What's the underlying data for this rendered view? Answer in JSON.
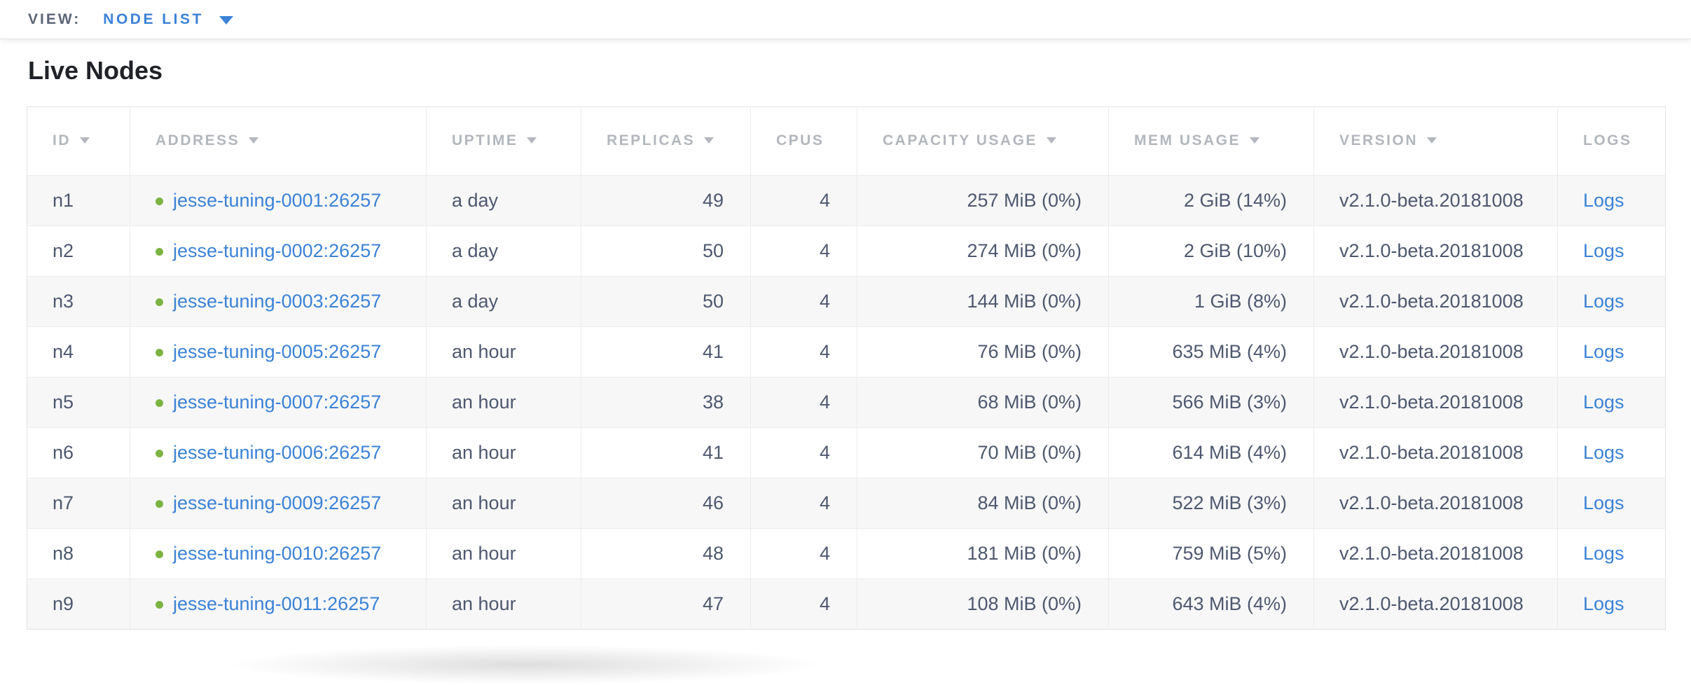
{
  "topbar": {
    "view_label": "VIEW:",
    "view_value": "NODE LIST"
  },
  "page": {
    "title": "Live Nodes"
  },
  "table": {
    "columns": [
      {
        "label": "ID",
        "sortable": true
      },
      {
        "label": "ADDRESS",
        "sortable": true
      },
      {
        "label": "UPTIME",
        "sortable": true
      },
      {
        "label": "REPLICAS",
        "sortable": true
      },
      {
        "label": "CPUS",
        "sortable": false
      },
      {
        "label": "CAPACITY USAGE",
        "sortable": true
      },
      {
        "label": "MEM USAGE",
        "sortable": true
      },
      {
        "label": "VERSION",
        "sortable": true
      },
      {
        "label": "LOGS",
        "sortable": false
      }
    ],
    "rows": [
      {
        "id": "n1",
        "status": "live",
        "address": "jesse-tuning-0001:26257",
        "uptime": "a day",
        "replicas": "49",
        "cpus": "4",
        "capacity_usage": "257 MiB (0%)",
        "mem_usage": "2 GiB (14%)",
        "version": "v2.1.0-beta.20181008",
        "logs_label": "Logs"
      },
      {
        "id": "n2",
        "status": "live",
        "address": "jesse-tuning-0002:26257",
        "uptime": "a day",
        "replicas": "50",
        "cpus": "4",
        "capacity_usage": "274 MiB (0%)",
        "mem_usage": "2 GiB (10%)",
        "version": "v2.1.0-beta.20181008",
        "logs_label": "Logs"
      },
      {
        "id": "n3",
        "status": "live",
        "address": "jesse-tuning-0003:26257",
        "uptime": "a day",
        "replicas": "50",
        "cpus": "4",
        "capacity_usage": "144 MiB (0%)",
        "mem_usage": "1 GiB (8%)",
        "version": "v2.1.0-beta.20181008",
        "logs_label": "Logs"
      },
      {
        "id": "n4",
        "status": "live",
        "address": "jesse-tuning-0005:26257",
        "uptime": "an hour",
        "replicas": "41",
        "cpus": "4",
        "capacity_usage": "76 MiB (0%)",
        "mem_usage": "635 MiB (4%)",
        "version": "v2.1.0-beta.20181008",
        "logs_label": "Logs"
      },
      {
        "id": "n5",
        "status": "live",
        "address": "jesse-tuning-0007:26257",
        "uptime": "an hour",
        "replicas": "38",
        "cpus": "4",
        "capacity_usage": "68 MiB (0%)",
        "mem_usage": "566 MiB (3%)",
        "version": "v2.1.0-beta.20181008",
        "logs_label": "Logs"
      },
      {
        "id": "n6",
        "status": "live",
        "address": "jesse-tuning-0006:26257",
        "uptime": "an hour",
        "replicas": "41",
        "cpus": "4",
        "capacity_usage": "70 MiB (0%)",
        "mem_usage": "614 MiB (4%)",
        "version": "v2.1.0-beta.20181008",
        "logs_label": "Logs"
      },
      {
        "id": "n7",
        "status": "live",
        "address": "jesse-tuning-0009:26257",
        "uptime": "an hour",
        "replicas": "46",
        "cpus": "4",
        "capacity_usage": "84 MiB (0%)",
        "mem_usage": "522 MiB (3%)",
        "version": "v2.1.0-beta.20181008",
        "logs_label": "Logs"
      },
      {
        "id": "n8",
        "status": "live",
        "address": "jesse-tuning-0010:26257",
        "uptime": "an hour",
        "replicas": "48",
        "cpus": "4",
        "capacity_usage": "181 MiB (0%)",
        "mem_usage": "759 MiB (5%)",
        "version": "v2.1.0-beta.20181008",
        "logs_label": "Logs"
      },
      {
        "id": "n9",
        "status": "live",
        "address": "jesse-tuning-0011:26257",
        "uptime": "an hour",
        "replicas": "47",
        "cpus": "4",
        "capacity_usage": "108 MiB (0%)",
        "mem_usage": "643 MiB (4%)",
        "version": "v2.1.0-beta.20181008",
        "logs_label": "Logs"
      }
    ]
  },
  "colors": {
    "accent_blue": "#3b82d6",
    "live_green": "#7cb342",
    "cell_text": "#4e586f",
    "header_text": "#b3b7bd",
    "zebra": "#f7f7f8"
  }
}
